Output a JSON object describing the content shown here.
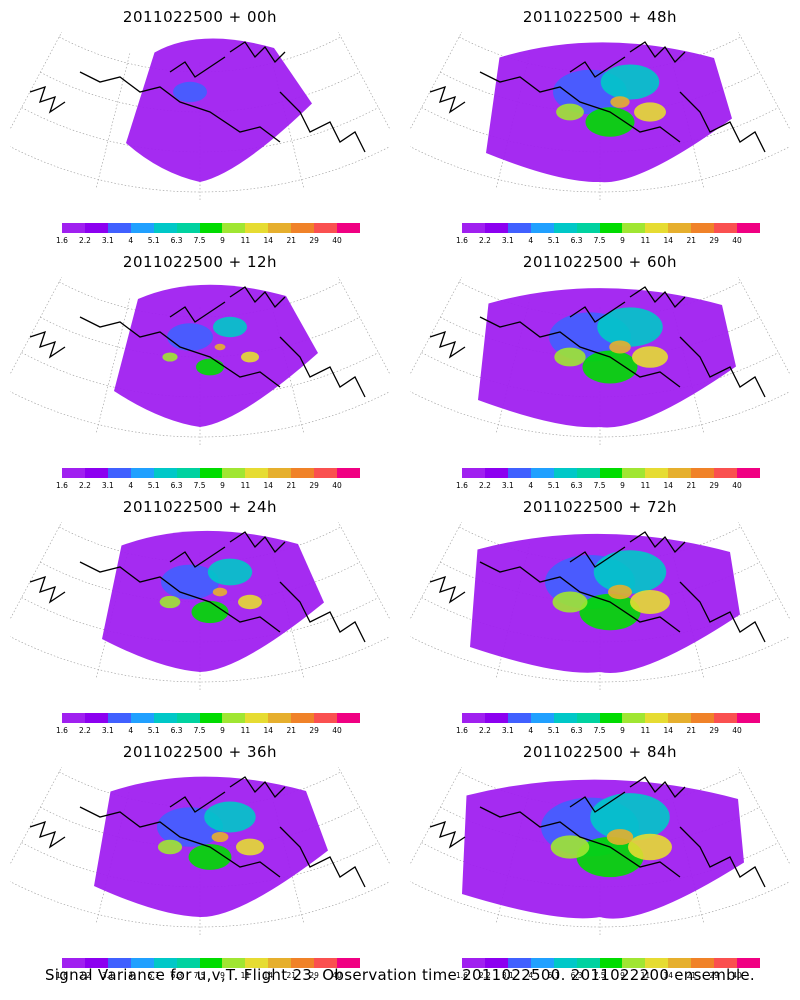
{
  "colorbar": {
    "colors": [
      "#a020f0",
      "#8c00f0",
      "#4060ff",
      "#20a0ff",
      "#00c8c8",
      "#00d2a0",
      "#00dc00",
      "#a0e632",
      "#e6dc32",
      "#e6af2d",
      "#f08228",
      "#fa5050",
      "#f00082"
    ],
    "labels": [
      "1.6",
      "2.2",
      "3.1",
      "4",
      "5.1",
      "6.3",
      "7.5",
      "9",
      "11",
      "14",
      "21",
      "29",
      "40"
    ]
  },
  "panels": [
    {
      "title": "2011022500 + 00h",
      "intensity": 0.05
    },
    {
      "title": "2011022500 + 48h",
      "intensity": 0.55
    },
    {
      "title": "2011022500 + 12h",
      "intensity": 0.2
    },
    {
      "title": "2011022500 + 60h",
      "intensity": 0.65
    },
    {
      "title": "2011022500 + 24h",
      "intensity": 0.35
    },
    {
      "title": "2011022500 + 72h",
      "intensity": 0.75
    },
    {
      "title": "2011022500 + 36h",
      "intensity": 0.45
    },
    {
      "title": "2011022500 + 84h",
      "intensity": 0.85
    }
  ],
  "footer": "Signal Variance for u,v,T. Flight 23. Observation time 2011022500. 2011022200 ensemble."
}
